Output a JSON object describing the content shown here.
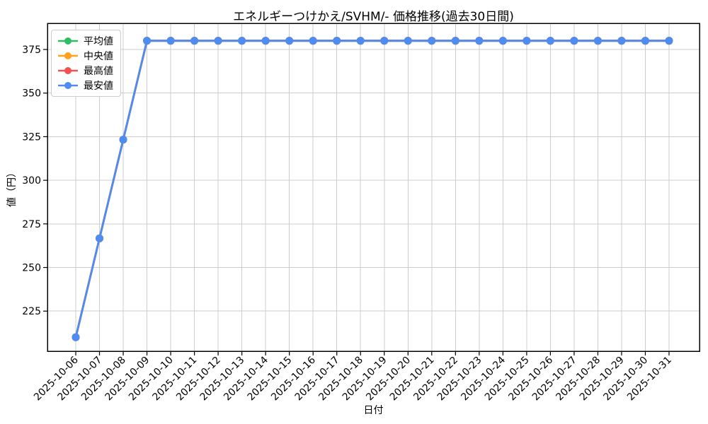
{
  "chart_data": {
    "type": "line",
    "title": "エネルギーつけかえ/SVHM/- 価格推移(過去30日間)",
    "xlabel": "日付",
    "ylabel": "値（円）",
    "categories": [
      "2025-10-06",
      "2025-10-07",
      "2025-10-08",
      "2025-10-09",
      "2025-10-10",
      "2025-10-11",
      "2025-10-12",
      "2025-10-13",
      "2025-10-14",
      "2025-10-15",
      "2025-10-16",
      "2025-10-17",
      "2025-10-18",
      "2025-10-19",
      "2025-10-20",
      "2025-10-21",
      "2025-10-22",
      "2025-10-23",
      "2025-10-24",
      "2025-10-25",
      "2025-10-26",
      "2025-10-27",
      "2025-10-28",
      "2025-10-29",
      "2025-10-30",
      "2025-10-31"
    ],
    "series": [
      {
        "key": "average",
        "name": "平均値",
        "color": "#2ebd62",
        "values": [
          210,
          266.7,
          323.3,
          380,
          380,
          380,
          380,
          380,
          380,
          380,
          380,
          380,
          380,
          380,
          380,
          380,
          380,
          380,
          380,
          380,
          380,
          380,
          380,
          380,
          380,
          380
        ]
      },
      {
        "key": "median",
        "name": "中央値",
        "color": "#ffa21a",
        "values": [
          210,
          266.7,
          323.3,
          380,
          380,
          380,
          380,
          380,
          380,
          380,
          380,
          380,
          380,
          380,
          380,
          380,
          380,
          380,
          380,
          380,
          380,
          380,
          380,
          380,
          380,
          380
        ]
      },
      {
        "key": "max",
        "name": "最高値",
        "color": "#f15150",
        "values": [
          210,
          266.7,
          323.3,
          380,
          380,
          380,
          380,
          380,
          380,
          380,
          380,
          380,
          380,
          380,
          380,
          380,
          380,
          380,
          380,
          380,
          380,
          380,
          380,
          380,
          380,
          380
        ]
      },
      {
        "key": "min",
        "name": "最安値",
        "color": "#4e8cf1",
        "values": [
          210,
          266.7,
          323.3,
          380,
          380,
          380,
          380,
          380,
          380,
          380,
          380,
          380,
          380,
          380,
          380,
          380,
          380,
          380,
          380,
          380,
          380,
          380,
          380,
          380,
          380,
          380
        ]
      }
    ],
    "yticks": [
      225,
      250,
      275,
      300,
      325,
      350,
      375
    ],
    "ylim": [
      202,
      390
    ],
    "grid": true,
    "grid_color": "#cccccc",
    "legend_position": "upper left",
    "marker": "o"
  }
}
